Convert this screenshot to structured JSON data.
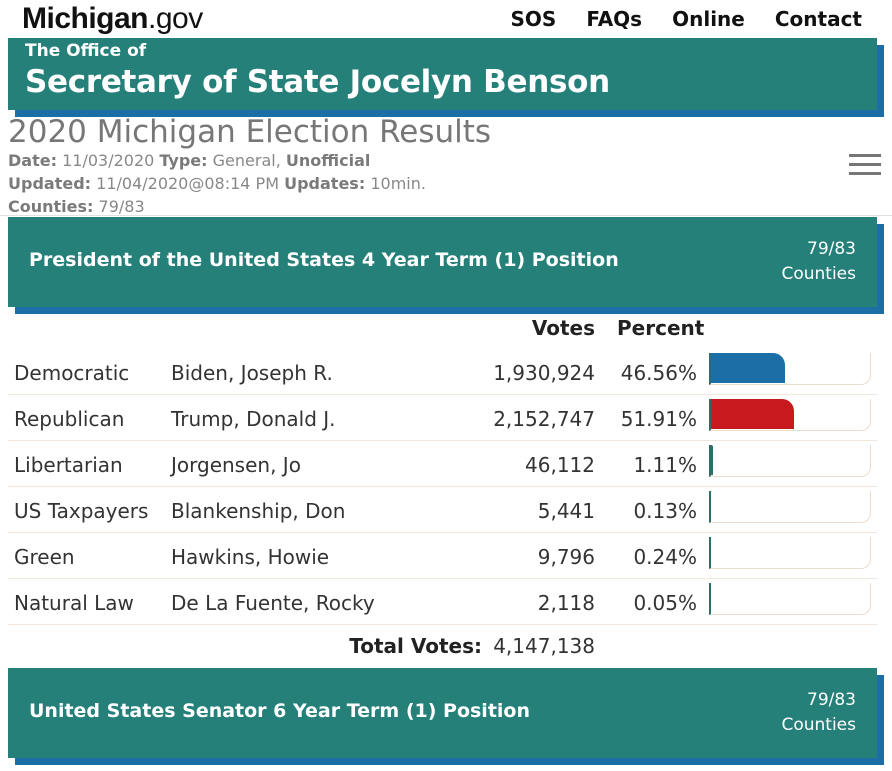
{
  "site": {
    "logo_bold": "Michigan",
    "logo_rest": ".gov"
  },
  "nav": [
    "SOS",
    "FAQs",
    "Online",
    "Contact"
  ],
  "banner": {
    "small": "The Office of",
    "big": "Secretary of State Jocelyn Benson"
  },
  "page": {
    "title": "2020 Michigan Election Results",
    "date_label": "Date:",
    "date": "11/03/2020",
    "type_label": "Type:",
    "type": "General,",
    "status": "Unofficial",
    "updated_label": "Updated:",
    "updated": "11/04/2020@08:14 PM",
    "updates_label": "Updates:",
    "updates": "10min.",
    "counties_label": "Counties:",
    "counties": "79/83"
  },
  "races": [
    {
      "title": "President of the United States 4 Year Term (1) Position",
      "counties_count": "79/83",
      "counties_word": "Counties"
    },
    {
      "title": "United States Senator 6 Year Term (1) Position",
      "counties_count": "79/83",
      "counties_word": "Counties"
    }
  ],
  "results": {
    "col_votes": "Votes",
    "col_percent": "Percent",
    "rows": [
      {
        "party": "Democratic",
        "candidate": "Biden, Joseph R.",
        "votes": "1,930,924",
        "percent": "46.56%",
        "fraction": 0.4656,
        "color": "#1b6fa6"
      },
      {
        "party": "Republican",
        "candidate": "Trump, Donald J.",
        "votes": "2,152,747",
        "percent": "51.91%",
        "fraction": 0.5191,
        "color": "#c8191e"
      },
      {
        "party": "Libertarian",
        "candidate": "Jorgensen, Jo",
        "votes": "46,112",
        "percent": "1.11%",
        "fraction": 0.0111,
        "color": "#2a6d6a"
      },
      {
        "party": "US Taxpayers",
        "candidate": "Blankenship, Don",
        "votes": "5,441",
        "percent": "0.13%",
        "fraction": 0.0013,
        "color": "#2a6d6a"
      },
      {
        "party": "Green",
        "candidate": "Hawkins, Howie",
        "votes": "9,796",
        "percent": "0.24%",
        "fraction": 0.0024,
        "color": "#2a6d6a"
      },
      {
        "party": "Natural Law",
        "candidate": "De La Fuente, Rocky",
        "votes": "2,118",
        "percent": "0.05%",
        "fraction": 0.0005,
        "color": "#2a6d6a"
      }
    ],
    "total_label": "Total Votes:",
    "total_votes": "4,147,138"
  }
}
